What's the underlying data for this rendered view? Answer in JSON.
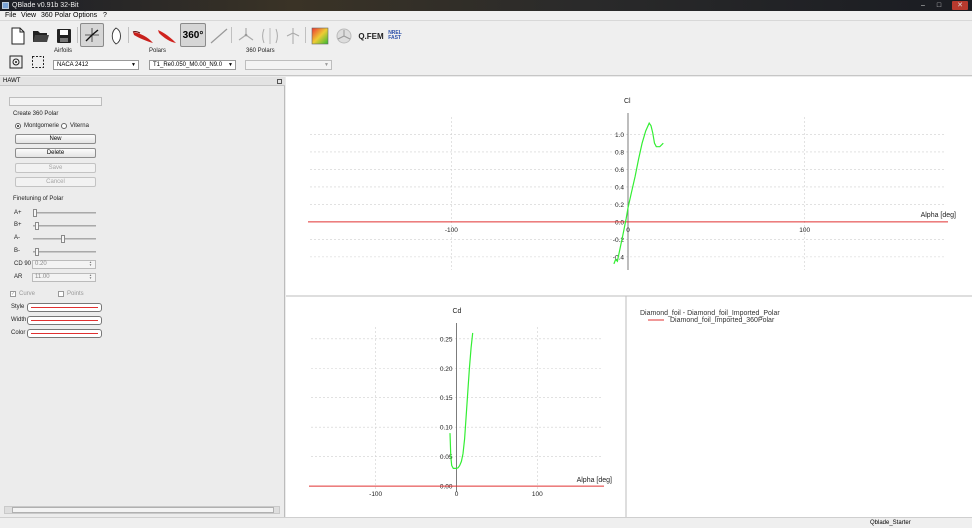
{
  "window": {
    "title": "QBlade v0.91b 32-Bit",
    "minimize": "–",
    "maximize": "□",
    "close": "✕"
  },
  "menu": {
    "items": [
      "File",
      "View",
      "360 Polar",
      "Options",
      "?"
    ]
  },
  "toolbar": {
    "buttons": [
      "new-file",
      "open-folder",
      "save",
      "polar-view",
      "airfoil-view",
      "blade-red-1",
      "blade-red-2",
      "360-polar",
      "line",
      "rotor-hawt",
      "rotor-vawt",
      "tower",
      "simulation-colormap",
      "turbine-sim"
    ],
    "extrapolate_label": "360°",
    "qfem_label": "Q.FEM",
    "qfem_sub": "",
    "nrel_label_top": "NREL",
    "nrel_label_bottom": "FAST",
    "airfoils_label": "Airfoils",
    "airfoils_value": "NACA 2412",
    "polars_label": "Polars",
    "polars_value": "T1_Re0.050_M0.00_N9.0",
    "polar360_label": "360 Polars",
    "polar360_value": ""
  },
  "dock": {
    "title": "HAWT",
    "name_field": "",
    "section_create": "Create 360 Polar",
    "radio_montgomerie": "Montgomerie",
    "radio_viterna": "Viterna",
    "btn_new": "New",
    "btn_delete": "Delete",
    "btn_save": "Save",
    "btn_cancel": "Cancel",
    "section_finetune": "Finetuning of Polar",
    "slider_a_plus": "A+",
    "slider_b_plus": "B+",
    "slider_a_minus": "A-",
    "slider_b_minus": "B-",
    "cd90_label": "CD 90",
    "cd90_value": "0.20",
    "ar_label": "AR",
    "ar_value": "11.00",
    "curve_label": "Curve",
    "points_label": "Points",
    "style_label": "Style",
    "width_label": "Width",
    "color_label": "Color"
  },
  "chart_data": [
    {
      "type": "line",
      "ylabel": "Cl",
      "xlabel": "Alpha [deg]",
      "x_ticks": [
        "-100",
        "0",
        "100"
      ],
      "y_ticks": [
        "1.0",
        "0.8",
        "0.6",
        "0.4",
        "0.2",
        "0.0",
        "-0.2",
        "-0.4"
      ],
      "xlim": [
        -180,
        180
      ],
      "ylim": [
        -0.55,
        1.2
      ],
      "grid": true,
      "series": [
        {
          "color": "#33ee33",
          "x": [
            -8,
            -7,
            -6,
            -5,
            -3,
            -1,
            0,
            2,
            4,
            6,
            8,
            10,
            12,
            13,
            14,
            15,
            16,
            18,
            20
          ],
          "y": [
            -0.48,
            -0.43,
            -0.45,
            -0.35,
            -0.16,
            0.04,
            0.16,
            0.34,
            0.52,
            0.72,
            0.9,
            1.04,
            1.13,
            1.1,
            1.02,
            0.9,
            0.86,
            0.86,
            0.9
          ]
        }
      ],
      "zero_line_color": "#e03030"
    },
    {
      "type": "line",
      "ylabel": "Cd",
      "xlabel": "Alpha [deg]",
      "x_ticks": [
        "-100",
        "0",
        "100"
      ],
      "y_ticks": [
        "0.25",
        "0.20",
        "0.15",
        "0.10",
        "0.05",
        "0.00"
      ],
      "xlim": [
        -180,
        180
      ],
      "ylim": [
        -0.01,
        0.27
      ],
      "grid": true,
      "series": [
        {
          "color": "#33ee33",
          "x": [
            -8,
            -7,
            -6,
            -4,
            -2,
            0,
            2,
            4,
            6,
            8,
            10,
            12,
            14,
            16,
            18,
            20
          ],
          "y": [
            0.09,
            0.05,
            0.035,
            0.03,
            0.03,
            0.03,
            0.031,
            0.035,
            0.042,
            0.055,
            0.08,
            0.12,
            0.16,
            0.2,
            0.235,
            0.26
          ]
        }
      ],
      "zero_line_color": "#e03030"
    }
  ],
  "legend": {
    "header": "Diamond_foil - Diamond_foil_Imported_Polar",
    "entry": "Diamond_foil_Imported_360Polar",
    "entry_color": "#e03030"
  },
  "status": {
    "project": "Qblade_Starter"
  }
}
